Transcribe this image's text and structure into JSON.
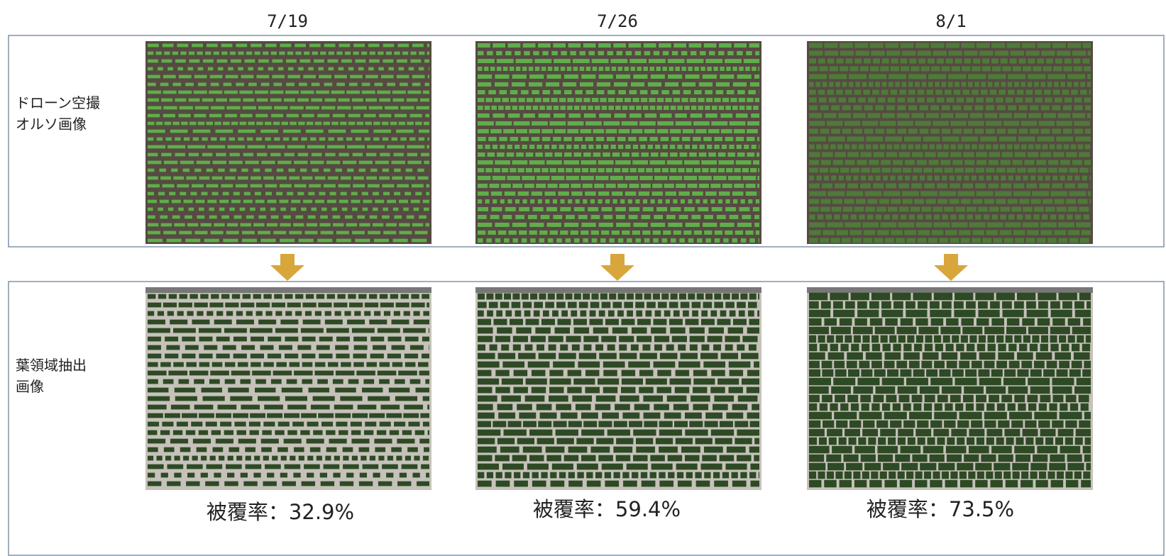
{
  "columns": [
    {
      "date": "7/19",
      "coverage": "被覆率：32.9%"
    },
    {
      "date": "7/26",
      "coverage": "被覆率：59.4%"
    },
    {
      "date": "8/1",
      "coverage": "被覆率：73.5%"
    }
  ],
  "rows": [
    {
      "label": [
        "ドローン空撮",
        "オルソ画像"
      ]
    },
    {
      "label": [
        "葉領域抽出",
        "画像"
      ]
    }
  ]
}
